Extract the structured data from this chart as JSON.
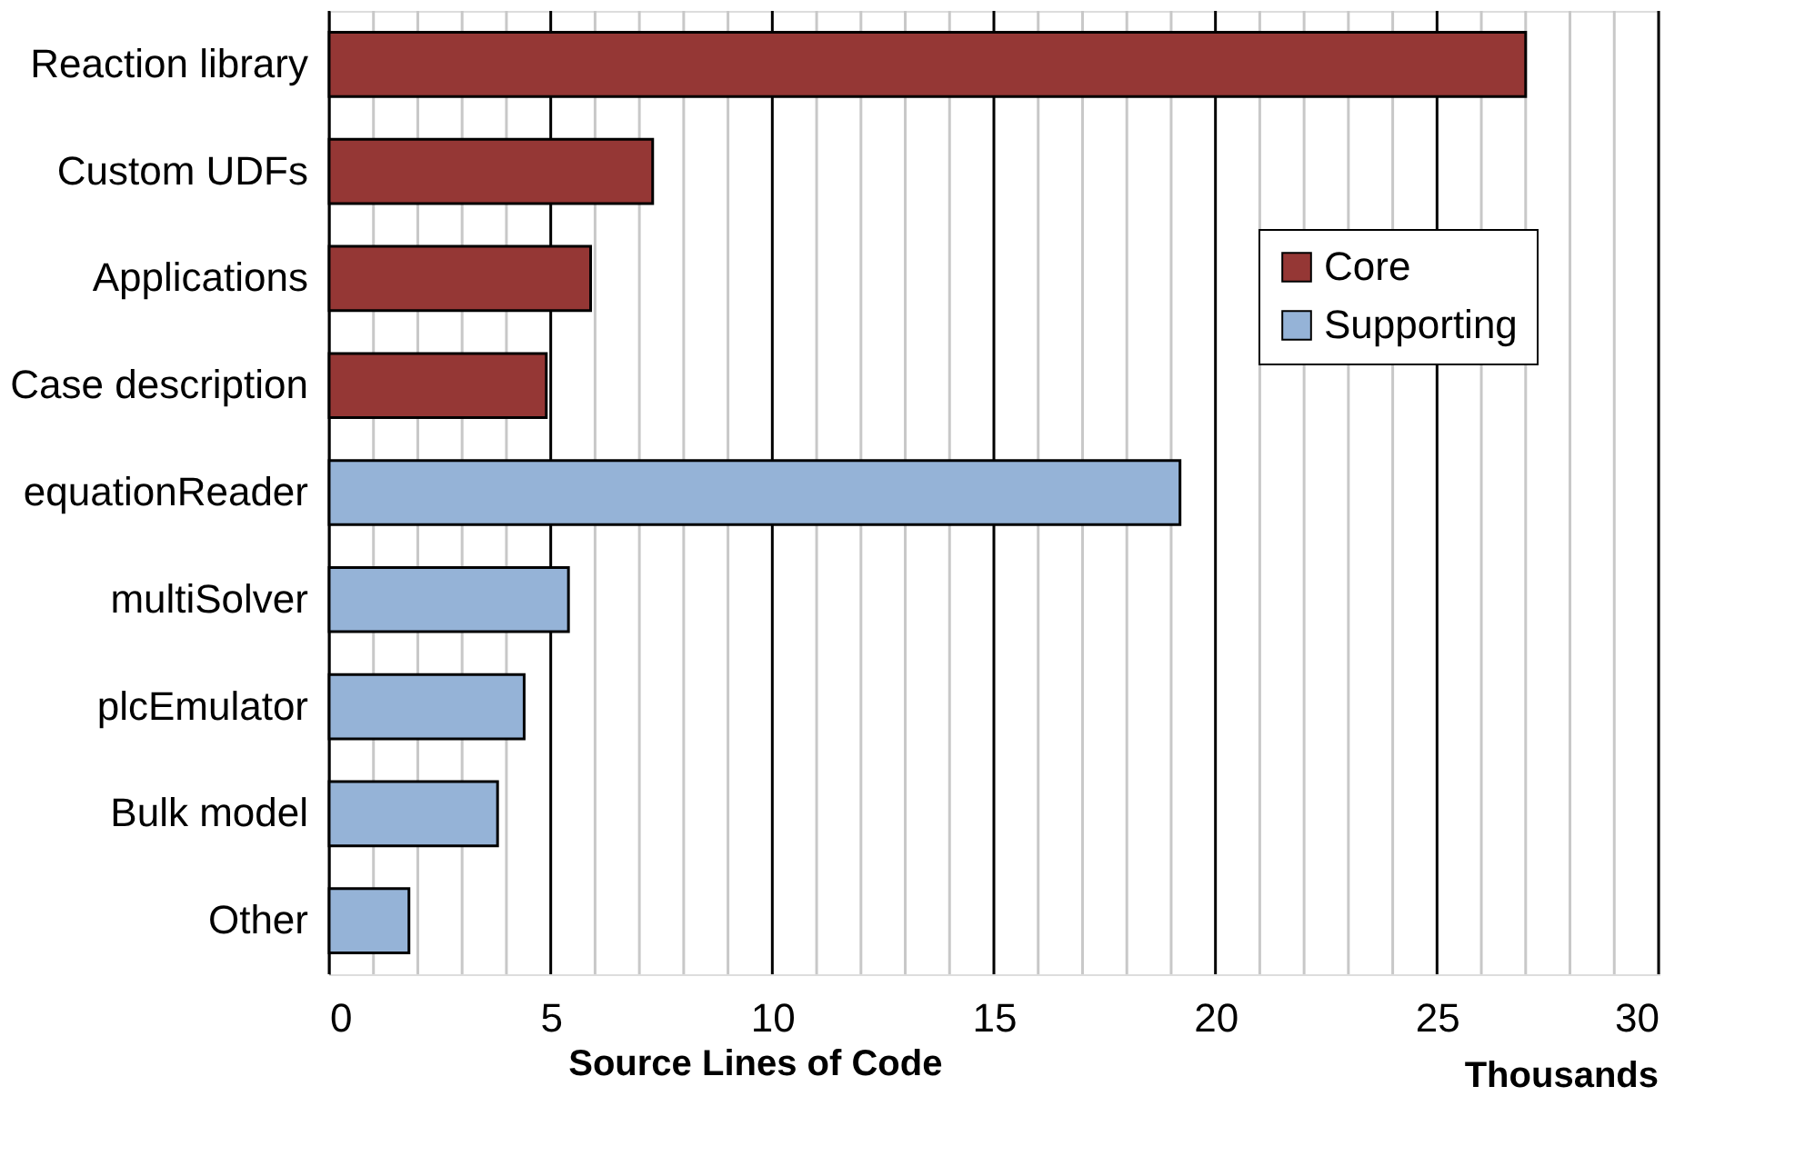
{
  "chart_data": {
    "type": "bar",
    "orientation": "horizontal",
    "xlabel": "Source Lines of Code",
    "annotations": [
      "Thousands"
    ],
    "categories": [
      "Reaction library",
      "Custom UDFs",
      "Applications",
      "Case description",
      "equationReader",
      "multiSolver",
      "plcEmulator",
      "Bulk model",
      "Other"
    ],
    "series": [
      {
        "name": "Core",
        "color": "#953735",
        "values": [
          27.0,
          7.3,
          5.9,
          4.9,
          null,
          null,
          null,
          null,
          null
        ]
      },
      {
        "name": "Supporting",
        "color": "#95b3d7",
        "values": [
          null,
          null,
          null,
          null,
          19.2,
          5.4,
          4.4,
          3.8,
          1.8
        ]
      }
    ],
    "xlim": [
      0,
      30
    ],
    "xticks": [
      0,
      {
        "value": 1,
        "label": null
      },
      {
        "value": 2,
        "label": null
      },
      {
        "value": 3,
        "label": null
      },
      {
        "value": 4,
        "label": null
      },
      5,
      {
        "value": 6,
        "label": null
      },
      {
        "value": 7,
        "label": null
      },
      {
        "value": 8,
        "label": null
      },
      {
        "value": 9,
        "label": null
      },
      10,
      {
        "value": 11,
        "label": null
      },
      {
        "value": 12,
        "label": null
      },
      {
        "value": 13,
        "label": null
      },
      {
        "value": 14,
        "label": null
      },
      15,
      {
        "value": 16,
        "label": null
      },
      {
        "value": 17,
        "label": null
      },
      {
        "value": 18,
        "label": null
      },
      {
        "value": 19,
        "label": null
      },
      20,
      {
        "value": 21,
        "label": null
      },
      {
        "value": 22,
        "label": null
      },
      {
        "value": 23,
        "label": null
      },
      {
        "value": 24,
        "label": null
      },
      25,
      {
        "value": 26,
        "label": null
      },
      {
        "value": 27,
        "label": null
      },
      {
        "value": 28,
        "label": null
      },
      {
        "value": 29,
        "label": null
      },
      30
    ],
    "grid": true,
    "legend": "top right"
  }
}
